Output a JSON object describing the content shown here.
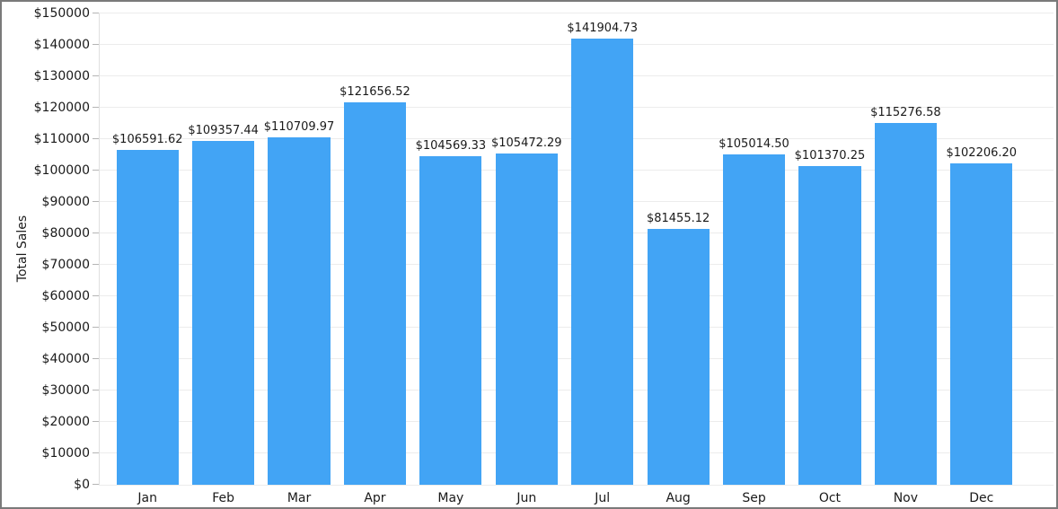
{
  "chart_data": {
    "type": "bar",
    "title": "",
    "xlabel": "",
    "ylabel": "Total Sales",
    "categories": [
      "Jan",
      "Feb",
      "Mar",
      "Apr",
      "May",
      "Jun",
      "Jul",
      "Aug",
      "Sep",
      "Oct",
      "Nov",
      "Dec"
    ],
    "values": [
      106591.62,
      109357.44,
      110709.97,
      121656.52,
      104569.33,
      105472.29,
      141904.73,
      81455.12,
      105014.5,
      101370.25,
      115276.58,
      102206.2
    ],
    "value_labels": [
      "$106591.62",
      "$109357.44",
      "$110709.97",
      "$121656.52",
      "$104569.33",
      "$105472.29",
      "$141904.73",
      "$81455.12",
      "$105014.50",
      "$101370.25",
      "$115276.58",
      "$102206.20"
    ],
    "ylim": [
      0,
      150000
    ],
    "ytick_step": 10000,
    "ytick_labels": [
      "$0",
      "$10000",
      "$20000",
      "$30000",
      "$40000",
      "$50000",
      "$60000",
      "$70000",
      "$80000",
      "$90000",
      "$100000",
      "$110000",
      "$120000",
      "$130000",
      "$140000",
      "$150000"
    ],
    "grid": true,
    "legend_position": "none",
    "colors": {
      "bar": "#42A4F5",
      "grid": "#ececec",
      "axis": "#e0e0e0",
      "tick": "#b5b5b5",
      "text": "#1a1a1a",
      "frame_border": "#7a7a7a"
    }
  }
}
